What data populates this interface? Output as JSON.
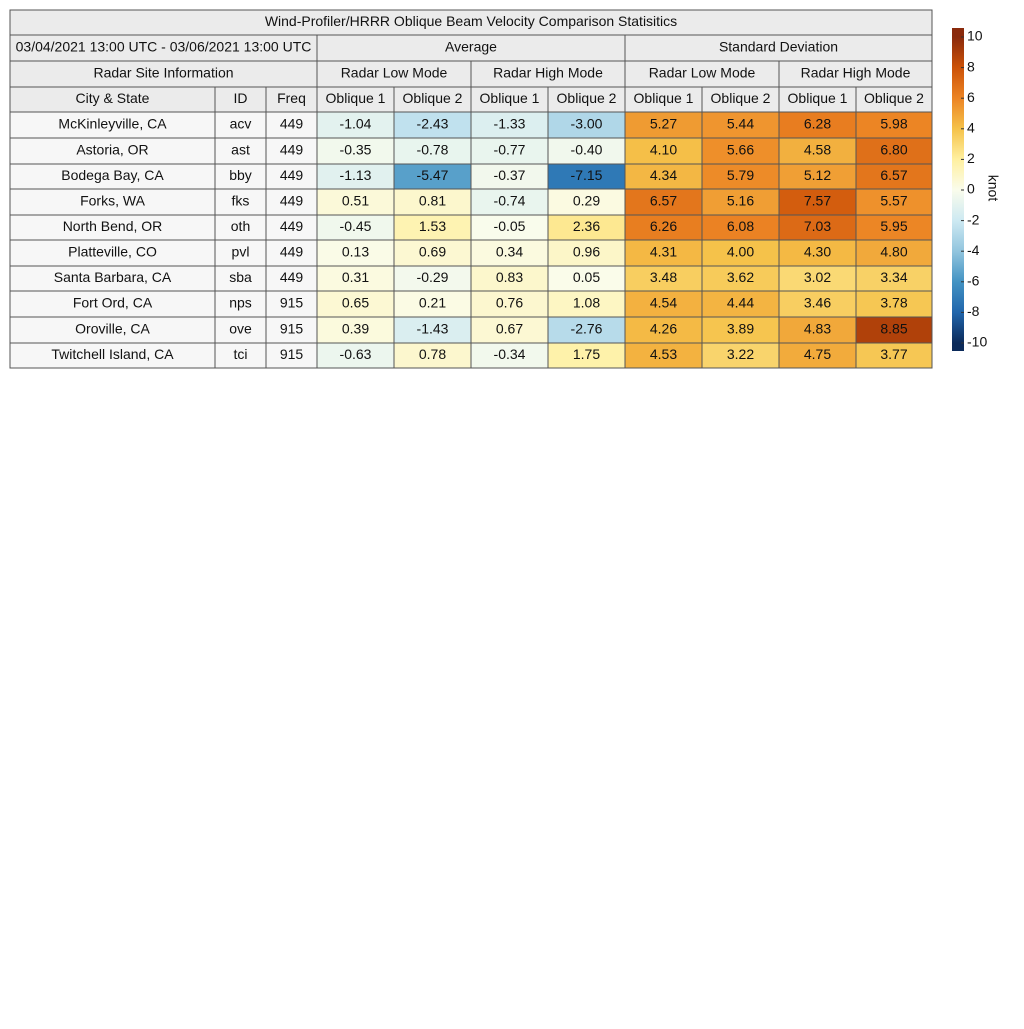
{
  "title": "Wind-Profiler/HRRR Oblique Beam Velocity Comparison Statisitics",
  "period": "03/04/2021 13:00 UTC - 03/06/2021 13:00 UTC",
  "groups": [
    "Average",
    "Standard Deviation"
  ],
  "site_header": "Radar Site Information",
  "modes": [
    "Radar Low Mode",
    "Radar High Mode",
    "Radar Low Mode",
    "Radar High Mode"
  ],
  "columns": [
    "City & State",
    "ID",
    "Freq",
    "Oblique 1",
    "Oblique 2",
    "Oblique 1",
    "Oblique 2",
    "Oblique 1",
    "Oblique 2",
    "Oblique 1",
    "Oblique 2"
  ],
  "table": {
    "rows": [
      [
        "McKinleyville, CA",
        "acv",
        "449",
        "-1.04",
        "-2.43",
        "-1.33",
        "-3.00",
        "5.27",
        "5.44",
        "6.28",
        "5.98"
      ],
      [
        "Astoria, OR",
        "ast",
        "449",
        "-0.35",
        "-0.78",
        "-0.77",
        "-0.40",
        "4.10",
        "5.66",
        "4.58",
        "6.80"
      ],
      [
        "Bodega Bay, CA",
        "bby",
        "449",
        "-1.13",
        "-5.47",
        "-0.37",
        "-7.15",
        "4.34",
        "5.79",
        "5.12",
        "6.57"
      ],
      [
        "Forks, WA",
        "fks",
        "449",
        "0.51",
        "0.81",
        "-0.74",
        "0.29",
        "6.57",
        "5.16",
        "7.57",
        "5.57"
      ],
      [
        "North Bend, OR",
        "oth",
        "449",
        "-0.45",
        "1.53",
        "-0.05",
        "2.36",
        "6.26",
        "6.08",
        "7.03",
        "5.95"
      ],
      [
        "Platteville, CO",
        "pvl",
        "449",
        "0.13",
        "0.69",
        "0.34",
        "0.96",
        "4.31",
        "4.00",
        "4.30",
        "4.80"
      ],
      [
        "Santa Barbara, CA",
        "sba",
        "449",
        "0.31",
        "-0.29",
        "0.83",
        "0.05",
        "3.48",
        "3.62",
        "3.02",
        "3.34"
      ],
      [
        "Fort Ord, CA",
        "nps",
        "915",
        "0.65",
        "0.21",
        "0.76",
        "1.08",
        "4.54",
        "4.44",
        "3.46",
        "3.78"
      ],
      [
        "Oroville, CA",
        "ove",
        "915",
        "0.39",
        "-1.43",
        "0.67",
        "-2.76",
        "4.26",
        "3.89",
        "4.83",
        "8.85"
      ],
      [
        "Twitchell Island, CA",
        "tci",
        "915",
        "-0.63",
        "0.78",
        "-0.34",
        "1.75",
        "4.53",
        "3.22",
        "4.75",
        "3.77"
      ]
    ]
  },
  "colorbar": {
    "label": "knot",
    "lim": [
      -10,
      10
    ],
    "ticks": [
      10,
      8,
      6,
      4,
      2,
      0,
      -2,
      -4,
      -6,
      -8,
      -10
    ],
    "colors": [
      "#0b2a5a",
      "#2166ac",
      "#4393c3",
      "#92c5de",
      "#cde9f2",
      "#fafcec",
      "#fff0a0",
      "#f5c24a",
      "#ec8424",
      "#cc5208",
      "#8a2a0c"
    ]
  }
}
